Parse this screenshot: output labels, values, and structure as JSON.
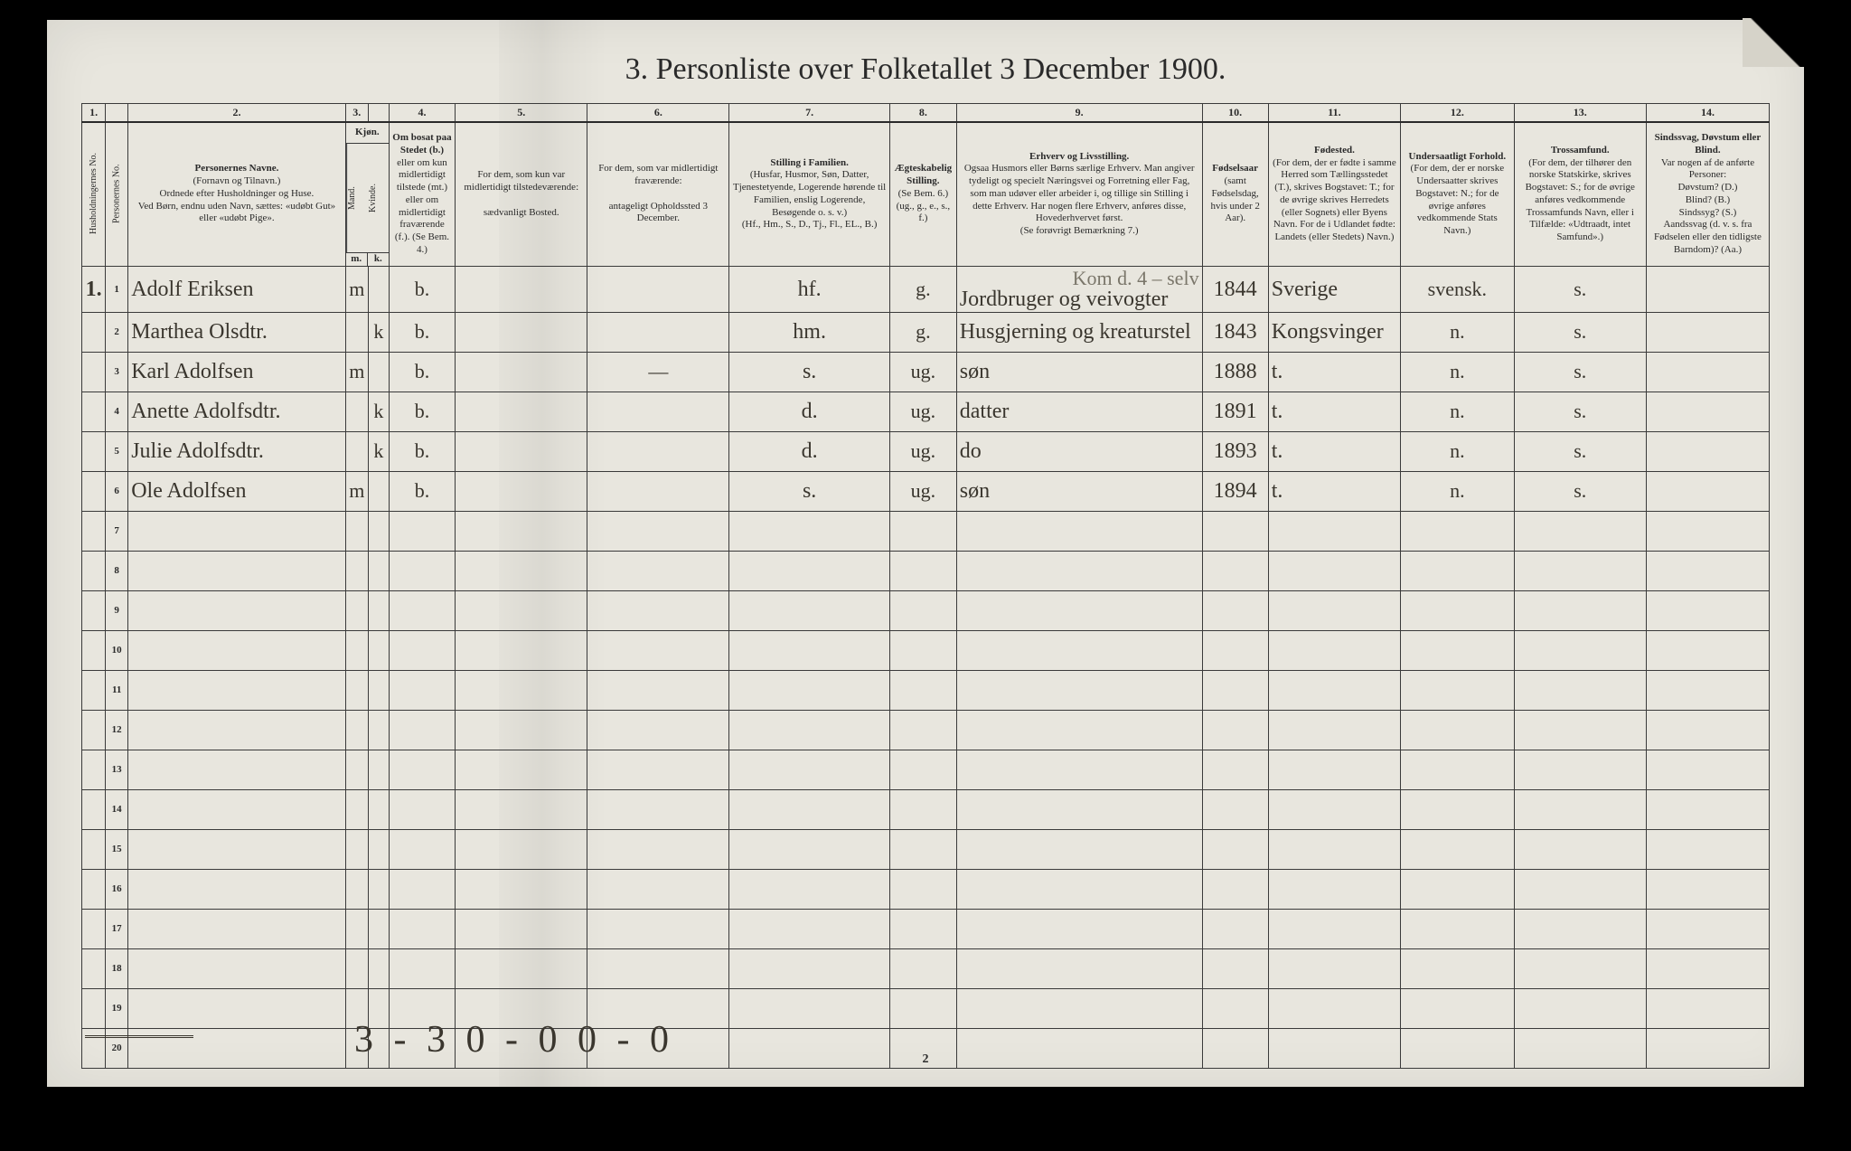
{
  "title": "3.  Personliste over Folketallet 3 December 1900.",
  "page_number": "2",
  "footer_handwriting": "3 - 3   0 - 0   0 - 0",
  "colors": {
    "page_bg": "#e8e6de",
    "ink": "#2a2a2a",
    "hand_ink": "#3a362e",
    "faint_hand": "#7a766a",
    "rule": "#3a3a3a",
    "outer_bg": "#000000"
  },
  "column_numbers": [
    "1.",
    "",
    "2.",
    "3.",
    "",
    "4.",
    "5.",
    "6.",
    "7.",
    "8.",
    "9.",
    "10.",
    "11.",
    "12.",
    "13.",
    "14."
  ],
  "headers": {
    "h1": "Husholdningernes No.",
    "h2": "Personernes No.",
    "h3_title": "Personernes Navne.",
    "h3_body": "(Fornavn og Tilnavn.)\nOrdnede efter Husholdninger og Huse.\nVed Børn, endnu uden Navn, sættes: «udøbt Gut» eller «udøbt Pige».",
    "h4": "Kjøn.",
    "h4a": "Mand.",
    "h4b": "Kvinde.",
    "h5_title": "Om bosat paa Stedet (b.)",
    "h5_body": "eller om kun midlertidigt tilstede (mt.) eller om midlertidigt fraværende (f.). (Se Bem. 4.)",
    "h6_title": "For dem, som kun var midlertidigt tilstedeværende:",
    "h6_body": "sædvanligt Bosted.",
    "h7_title": "For dem, som var midlertidigt fraværende:",
    "h7_body": "antageligt Opholdssted 3 December.",
    "h8_title": "Stilling i Familien.",
    "h8_body": "(Husfar, Husmor, Søn, Datter, Tjenestetyende, Logerende hørende til Familien, enslig Logerende, Besøgende o. s. v.)\n(Hf., Hm., S., D., Tj., Fl., EL., B.)",
    "h9_title": "Ægteskabelig Stilling.",
    "h9_body": "(Se Bem. 6.)\n(ug., g., e., s., f.)",
    "h10_title": "Erhverv og Livsstilling.",
    "h10_body": "Ogsaa Husmors eller Børns særlige Erhverv. Man angiver tydeligt og specielt Næringsvei og Forretning eller Fag, som man udøver eller arbeider i, og tillige sin Stilling i dette Erhverv. Har nogen flere Erhverv, anføres disse, Hovederhvervet først.\n(Se forøvrigt Bemærkning 7.)",
    "h11_title": "Fødselsaar",
    "h11_body": "(samt Fødselsdag, hvis under 2 Aar).",
    "h12_title": "Fødested.",
    "h12_body": "(For dem, der er fødte i samme Herred som Tællingsstedet (T.), skrives Bogstavet: T.; for de øvrige skrives Herredets (eller Sognets) eller Byens Navn. For de i Udlandet fødte: Landets (eller Stedets) Navn.)",
    "h13_title": "Undersaatligt Forhold.",
    "h13_body": "(For dem, der er norske Undersaatter skrives Bogstavet: N.; for de øvrige anføres vedkommende Stats Navn.)",
    "h14_title": "Trossamfund.",
    "h14_body": "(For dem, der tilhører den norske Statskirke, skrives Bogstavet: S.; for de øvrige anføres vedkommende Trossamfunds Navn, eller i Tilfælde: «Udtraadt, intet Samfund».)",
    "h15_title": "Sindssvag, Døvstum eller Blind.",
    "h15_body": "Var nogen af de anførte Personer:\nDøvstum? (D.)\nBlind? (B.)\nSindssyg? (S.)\nAandssvag (d. v. s. fra Fødselen eller den tidligste Barndom)? (Aa.)"
  },
  "first_row_label": "1.",
  "rows": [
    {
      "n": "1",
      "name": "Adolf Eriksen",
      "sexM": "m",
      "sexK": "",
      "res": "b.",
      "c6": "",
      "c7": "",
      "fam": "hf.",
      "mar": "g.",
      "occ": "Jordbruger og veivogter",
      "occ_faint": "Kom d. 4 – selv",
      "yr": "1844",
      "birth": "Sverige",
      "nat": "svensk.",
      "rel": "s.",
      "inf": ""
    },
    {
      "n": "2",
      "name": "Marthea Olsdtr.",
      "sexM": "",
      "sexK": "k",
      "res": "b.",
      "c6": "",
      "c7": "",
      "fam": "hm.",
      "mar": "g.",
      "occ": "Husgjerning og kreaturstel",
      "occ_faint": "",
      "yr": "1843",
      "birth": "Kongsvinger",
      "nat": "n.",
      "rel": "s.",
      "inf": ""
    },
    {
      "n": "3",
      "name": "Karl Adolfsen",
      "sexM": "m",
      "sexK": "",
      "res": "b.",
      "c6": "",
      "c7": "—",
      "fam": "s.",
      "mar": "ug.",
      "occ": "søn",
      "occ_faint": "",
      "yr": "1888",
      "birth": "t.",
      "nat": "n.",
      "rel": "s.",
      "inf": ""
    },
    {
      "n": "4",
      "name": "Anette Adolfsdtr.",
      "sexM": "",
      "sexK": "k",
      "res": "b.",
      "c6": "",
      "c7": "",
      "fam": "d.",
      "mar": "ug.",
      "occ": "datter",
      "occ_faint": "",
      "yr": "1891",
      "birth": "t.",
      "nat": "n.",
      "rel": "s.",
      "inf": ""
    },
    {
      "n": "5",
      "name": "Julie Adolfsdtr.",
      "sexM": "",
      "sexK": "k",
      "res": "b.",
      "c6": "",
      "c7": "",
      "fam": "d.",
      "mar": "ug.",
      "occ": "do",
      "occ_faint": "",
      "yr": "1893",
      "birth": "t.",
      "nat": "n.",
      "rel": "s.",
      "inf": ""
    },
    {
      "n": "6",
      "name": "Ole Adolfsen",
      "sexM": "m",
      "sexK": "",
      "res": "b.",
      "c6": "",
      "c7": "",
      "fam": "s.",
      "mar": "ug.",
      "occ": "søn",
      "occ_faint": "",
      "yr": "1894",
      "birth": "t.",
      "nat": "n.",
      "rel": "s.",
      "inf": ""
    },
    {
      "n": "7"
    },
    {
      "n": "8"
    },
    {
      "n": "9"
    },
    {
      "n": "10"
    },
    {
      "n": "11"
    },
    {
      "n": "12"
    },
    {
      "n": "13"
    },
    {
      "n": "14"
    },
    {
      "n": "15"
    },
    {
      "n": "16"
    },
    {
      "n": "17"
    },
    {
      "n": "18"
    },
    {
      "n": "19"
    },
    {
      "n": "20"
    }
  ]
}
